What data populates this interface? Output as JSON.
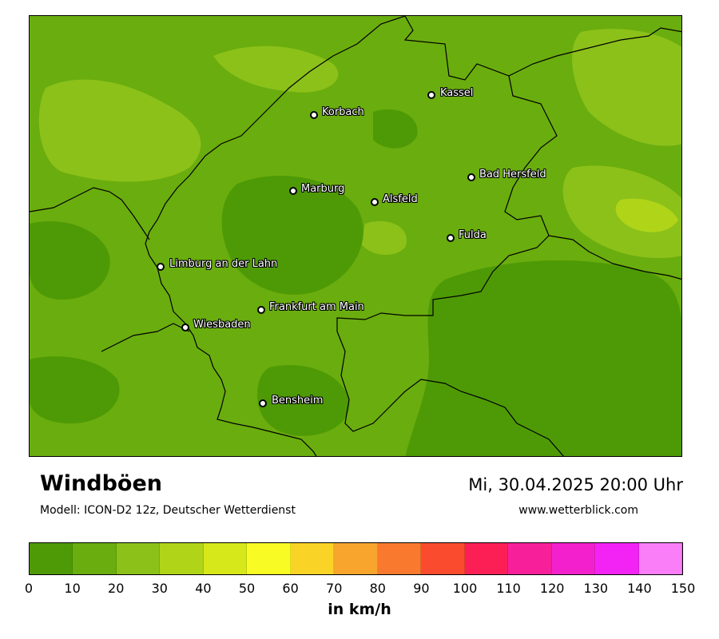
{
  "map": {
    "colors": {
      "base": "#6aad0e",
      "dark": "#4e9a06",
      "light": "#8cc11a",
      "border": "#000000"
    },
    "cities": [
      {
        "name": "Kassel"
      },
      {
        "name": "Korbach"
      },
      {
        "name": "Bad Hersfeld"
      },
      {
        "name": "Marburg"
      },
      {
        "name": "Alsfeld"
      },
      {
        "name": "Fulda"
      },
      {
        "name": "Limburg an der Lahn"
      },
      {
        "name": "Frankfurt am Main"
      },
      {
        "name": "Wiesbaden"
      },
      {
        "name": "Bensheim"
      }
    ]
  },
  "header": {
    "title": "Windböen",
    "subtitle": "Modell: ICON-D2 12z, Deutscher Wetterdienst",
    "datetime": "Mi, 30.04.2025 20:00 Uhr",
    "website": "www.wetterblick.com"
  },
  "legend": {
    "unit": "in km/h",
    "ticks": [
      "0",
      "10",
      "20",
      "30",
      "40",
      "50",
      "60",
      "70",
      "80",
      "90",
      "100",
      "110",
      "120",
      "130",
      "140",
      "150"
    ],
    "colors": [
      "#4e9a06",
      "#6aad0e",
      "#8cc11a",
      "#b0d518",
      "#d7e81a",
      "#f9fb24",
      "#f9d325",
      "#f7a52c",
      "#f97a2e",
      "#fb4b2e",
      "#fb1f56",
      "#f81f9a",
      "#f320cd",
      "#f423f5",
      "#f97ef7"
    ]
  }
}
